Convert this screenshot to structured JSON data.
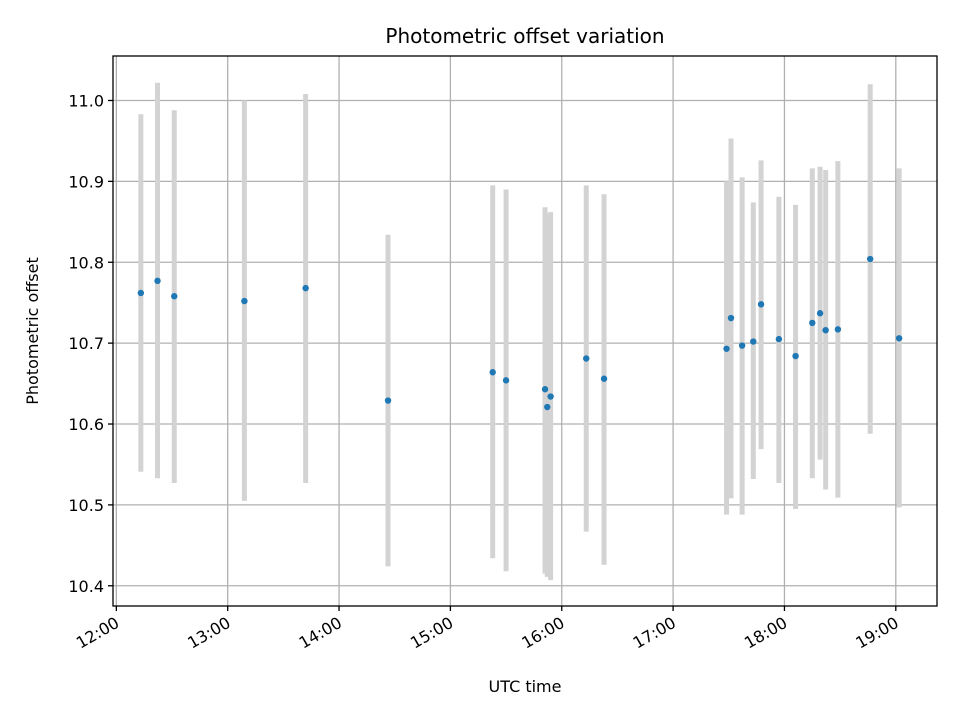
{
  "chart_data": {
    "type": "scatter",
    "title": "Photometric offset variation",
    "xlabel": "UTC time",
    "ylabel": "Photometric offset",
    "x_unit": "hours (UTC)",
    "xlim": [
      11.97,
      19.37
    ],
    "ylim": [
      10.375,
      11.055
    ],
    "x_ticks": [
      12,
      13,
      14,
      15,
      16,
      17,
      18,
      19
    ],
    "x_tick_labels": [
      "12:00",
      "13:00",
      "14:00",
      "15:00",
      "16:00",
      "17:00",
      "18:00",
      "19:00"
    ],
    "y_ticks": [
      10.4,
      10.5,
      10.6,
      10.7,
      10.8,
      10.9,
      11.0
    ],
    "y_tick_labels": [
      "10.4",
      "10.5",
      "10.6",
      "10.7",
      "10.8",
      "10.9",
      "11.0"
    ],
    "grid": true,
    "point_color": "#1f77b4",
    "errorbar_color": "#d3d3d3",
    "points": [
      {
        "x": 12.22,
        "y": 10.762,
        "ylo": 10.541,
        "yhi": 10.983
      },
      {
        "x": 12.37,
        "y": 10.777,
        "ylo": 10.533,
        "yhi": 11.022
      },
      {
        "x": 12.52,
        "y": 10.758,
        "ylo": 10.527,
        "yhi": 10.988
      },
      {
        "x": 13.15,
        "y": 10.752,
        "ylo": 10.505,
        "yhi": 11.0
      },
      {
        "x": 13.7,
        "y": 10.768,
        "ylo": 10.527,
        "yhi": 11.008
      },
      {
        "x": 14.44,
        "y": 10.629,
        "ylo": 10.424,
        "yhi": 10.834
      },
      {
        "x": 15.38,
        "y": 10.664,
        "ylo": 10.434,
        "yhi": 10.895
      },
      {
        "x": 15.5,
        "y": 10.654,
        "ylo": 10.418,
        "yhi": 10.89
      },
      {
        "x": 15.85,
        "y": 10.643,
        "ylo": 10.415,
        "yhi": 10.868
      },
      {
        "x": 15.87,
        "y": 10.621,
        "ylo": 10.411,
        "yhi": 10.86
      },
      {
        "x": 15.9,
        "y": 10.634,
        "ylo": 10.407,
        "yhi": 10.862
      },
      {
        "x": 16.22,
        "y": 10.681,
        "ylo": 10.467,
        "yhi": 10.895
      },
      {
        "x": 16.38,
        "y": 10.656,
        "ylo": 10.426,
        "yhi": 10.884
      },
      {
        "x": 17.48,
        "y": 10.693,
        "ylo": 10.488,
        "yhi": 10.9
      },
      {
        "x": 17.52,
        "y": 10.731,
        "ylo": 10.508,
        "yhi": 10.953
      },
      {
        "x": 17.62,
        "y": 10.697,
        "ylo": 10.488,
        "yhi": 10.905
      },
      {
        "x": 17.72,
        "y": 10.702,
        "ylo": 10.532,
        "yhi": 10.874
      },
      {
        "x": 17.79,
        "y": 10.748,
        "ylo": 10.569,
        "yhi": 10.926
      },
      {
        "x": 17.95,
        "y": 10.705,
        "ylo": 10.527,
        "yhi": 10.881
      },
      {
        "x": 18.1,
        "y": 10.684,
        "ylo": 10.495,
        "yhi": 10.871
      },
      {
        "x": 18.25,
        "y": 10.725,
        "ylo": 10.533,
        "yhi": 10.916
      },
      {
        "x": 18.32,
        "y": 10.737,
        "ylo": 10.556,
        "yhi": 10.918
      },
      {
        "x": 18.37,
        "y": 10.716,
        "ylo": 10.519,
        "yhi": 10.914
      },
      {
        "x": 18.48,
        "y": 10.717,
        "ylo": 10.509,
        "yhi": 10.925
      },
      {
        "x": 18.77,
        "y": 10.804,
        "ylo": 10.588,
        "yhi": 11.02
      },
      {
        "x": 19.03,
        "y": 10.706,
        "ylo": 10.497,
        "yhi": 10.916
      }
    ]
  }
}
